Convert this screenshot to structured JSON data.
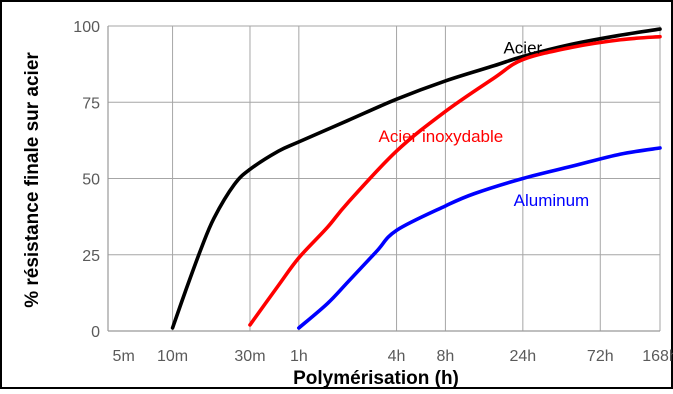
{
  "chart_data": {
    "type": "line",
    "title": "",
    "xlabel": "Polymérisation (h)",
    "ylabel": "% résistance finale sur acier",
    "x_scale": "log",
    "x_unit": "h",
    "xlim": [
      0.0667,
      168
    ],
    "ylim": [
      0,
      100
    ],
    "x_ticks": [
      {
        "value": 0.0833,
        "label": "5m"
      },
      {
        "value": 0.1667,
        "label": "10m"
      },
      {
        "value": 0.5,
        "label": "30m"
      },
      {
        "value": 1,
        "label": "1h"
      },
      {
        "value": 4,
        "label": "4h"
      },
      {
        "value": 8,
        "label": "8h"
      },
      {
        "value": 24,
        "label": "24h"
      },
      {
        "value": 72,
        "label": "72h"
      },
      {
        "value": 168,
        "label": "168h"
      }
    ],
    "y_ticks": [
      {
        "value": 0,
        "label": "0"
      },
      {
        "value": 25,
        "label": "25"
      },
      {
        "value": 50,
        "label": "50"
      },
      {
        "value": 75,
        "label": "75"
      },
      {
        "value": 100,
        "label": "100"
      }
    ],
    "grid": true,
    "legend": "inline labels",
    "series": [
      {
        "name": "Acier",
        "color": "#000000",
        "label_anchor": {
          "x": 24,
          "y": 93
        },
        "points": [
          [
            0.1667,
            1
          ],
          [
            0.2,
            13
          ],
          [
            0.25,
            27
          ],
          [
            0.3,
            37
          ],
          [
            0.4,
            48
          ],
          [
            0.5,
            53
          ],
          [
            0.75,
            59
          ],
          [
            1,
            62
          ],
          [
            2,
            69
          ],
          [
            4,
            76
          ],
          [
            8,
            82
          ],
          [
            16,
            87
          ],
          [
            24,
            90
          ],
          [
            48,
            94
          ],
          [
            96,
            97
          ],
          [
            168,
            99
          ]
        ]
      },
      {
        "name": "Acier inoxydable",
        "color": "#ff0000",
        "label_anchor": {
          "x": 7.5,
          "y": 64
        },
        "points": [
          [
            0.5,
            2
          ],
          [
            0.75,
            15
          ],
          [
            1,
            24
          ],
          [
            1.5,
            34
          ],
          [
            2,
            42
          ],
          [
            4,
            59
          ],
          [
            8,
            72
          ],
          [
            16,
            83
          ],
          [
            24,
            89
          ],
          [
            48,
            93
          ],
          [
            96,
            95.5
          ],
          [
            168,
            96.5
          ]
        ]
      },
      {
        "name": "Aluminum",
        "color": "#0000ff",
        "label_anchor": {
          "x": 36,
          "y": 43
        },
        "points": [
          [
            1,
            1
          ],
          [
            1.5,
            9
          ],
          [
            2,
            16
          ],
          [
            3,
            26
          ],
          [
            4,
            33
          ],
          [
            8,
            41
          ],
          [
            12,
            45
          ],
          [
            24,
            50
          ],
          [
            48,
            54
          ],
          [
            96,
            58
          ],
          [
            168,
            60
          ]
        ]
      }
    ]
  }
}
